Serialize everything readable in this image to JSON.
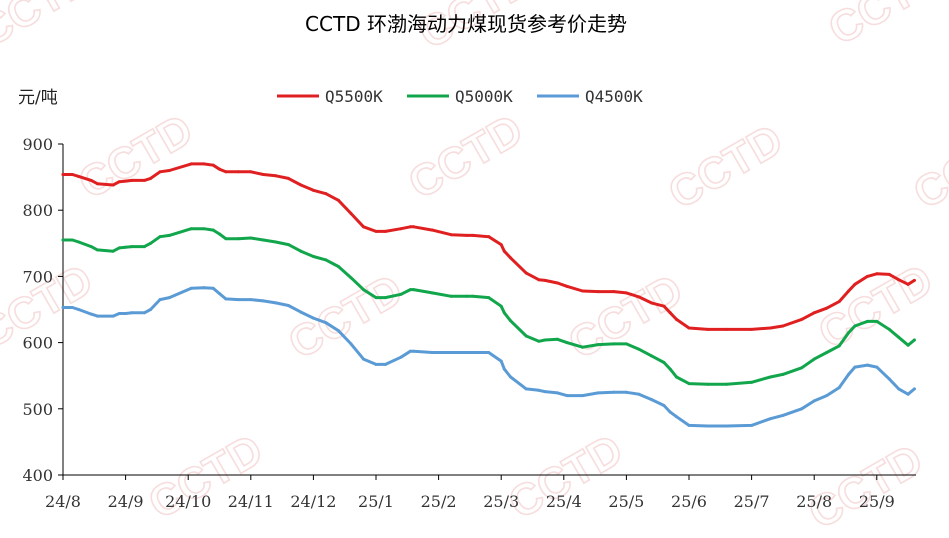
{
  "watermark": "CCTD",
  "chart_data": {
    "type": "line",
    "title": "CCTD 环渤海动力煤现货参考价走势",
    "ylabel": "元/吨",
    "xlabel": "",
    "ylim": [
      400,
      900
    ],
    "yticks": [
      400,
      500,
      600,
      700,
      800,
      900
    ],
    "xticks": [
      "24/8",
      "24/9",
      "24/10",
      "24/11",
      "24/12",
      "25/1",
      "25/2",
      "25/3",
      "25/4",
      "25/5",
      "25/6",
      "25/7",
      "25/8",
      "25/9"
    ],
    "grid": false,
    "legend_position": "top",
    "series": [
      {
        "name": "Q5500K",
        "color": "#e02020",
        "x": [
          0,
          0.15,
          0.25,
          0.45,
          0.55,
          0.8,
          0.9,
          1.0,
          1.1,
          1.3,
          1.4,
          1.55,
          1.7,
          2.05,
          2.25,
          2.4,
          2.5,
          2.6,
          2.8,
          3.0,
          3.2,
          3.4,
          3.6,
          3.8,
          4.0,
          4.2,
          4.4,
          4.6,
          4.8,
          5.0,
          5.15,
          5.4,
          5.55,
          5.6,
          5.9,
          6.2,
          6.45,
          6.55,
          6.8,
          7.0,
          7.05,
          7.15,
          7.4,
          7.6,
          7.7,
          7.9,
          8.05,
          8.3,
          8.55,
          8.8,
          9.0,
          9.2,
          9.4,
          9.6,
          9.7,
          9.8,
          10.0,
          10.3,
          10.6,
          11.0,
          11.3,
          11.5,
          11.8,
          12.0,
          12.2,
          12.4,
          12.55,
          12.65,
          12.85,
          13.0,
          13.2,
          13.35,
          13.5,
          13.6
        ],
        "values": [
          854,
          854,
          851,
          845,
          840,
          838,
          843,
          844,
          845,
          845,
          848,
          858,
          860,
          870,
          870,
          868,
          862,
          858,
          858,
          858,
          854,
          852,
          848,
          838,
          830,
          825,
          815,
          795,
          775,
          768,
          768,
          772,
          775,
          775,
          770,
          763,
          762,
          762,
          760,
          748,
          738,
          728,
          705,
          695,
          694,
          690,
          685,
          678,
          677,
          677,
          675,
          669,
          660,
          655,
          645,
          635,
          622,
          620,
          620,
          620,
          622,
          625,
          635,
          645,
          652,
          662,
          678,
          688,
          700,
          704,
          703,
          695,
          688,
          694
        ]
      },
      {
        "name": "Q5000K",
        "color": "#12a64c",
        "x": [
          0,
          0.15,
          0.25,
          0.45,
          0.55,
          0.8,
          0.9,
          1.0,
          1.1,
          1.3,
          1.4,
          1.55,
          1.7,
          2.05,
          2.25,
          2.4,
          2.5,
          2.6,
          2.8,
          3.0,
          3.2,
          3.4,
          3.6,
          3.8,
          4.0,
          4.2,
          4.4,
          4.6,
          4.8,
          5.0,
          5.15,
          5.4,
          5.55,
          5.6,
          5.9,
          6.2,
          6.45,
          6.55,
          6.8,
          7.0,
          7.05,
          7.15,
          7.4,
          7.6,
          7.7,
          7.9,
          8.05,
          8.3,
          8.55,
          8.8,
          9.0,
          9.2,
          9.4,
          9.6,
          9.7,
          9.8,
          10.0,
          10.3,
          10.6,
          11.0,
          11.3,
          11.5,
          11.8,
          12.0,
          12.2,
          12.4,
          12.55,
          12.65,
          12.85,
          13.0,
          13.2,
          13.35,
          13.5,
          13.6
        ],
        "values": [
          755,
          755,
          752,
          745,
          740,
          738,
          743,
          744,
          745,
          745,
          750,
          760,
          762,
          772,
          772,
          770,
          764,
          757,
          757,
          758,
          755,
          752,
          748,
          738,
          730,
          725,
          715,
          698,
          680,
          668,
          668,
          673,
          680,
          680,
          675,
          670,
          670,
          670,
          668,
          655,
          645,
          633,
          610,
          602,
          604,
          605,
          600,
          593,
          597,
          598,
          598,
          590,
          580,
          570,
          560,
          548,
          538,
          537,
          537,
          540,
          548,
          552,
          562,
          575,
          585,
          595,
          615,
          625,
          632,
          632,
          620,
          608,
          596,
          604
        ]
      },
      {
        "name": "Q4500K",
        "color": "#5b9bd5",
        "x": [
          0,
          0.15,
          0.25,
          0.45,
          0.55,
          0.8,
          0.9,
          1.0,
          1.1,
          1.3,
          1.4,
          1.55,
          1.7,
          2.05,
          2.25,
          2.4,
          2.5,
          2.6,
          2.8,
          3.0,
          3.2,
          3.4,
          3.6,
          3.8,
          4.0,
          4.2,
          4.4,
          4.6,
          4.8,
          5.0,
          5.15,
          5.4,
          5.55,
          5.6,
          5.9,
          6.2,
          6.45,
          6.55,
          6.8,
          7.0,
          7.05,
          7.15,
          7.4,
          7.6,
          7.7,
          7.9,
          8.05,
          8.3,
          8.55,
          8.8,
          9.0,
          9.2,
          9.4,
          9.6,
          9.7,
          9.8,
          10.0,
          10.3,
          10.6,
          11.0,
          11.3,
          11.5,
          11.8,
          12.0,
          12.2,
          12.4,
          12.55,
          12.65,
          12.85,
          13.0,
          13.2,
          13.35,
          13.5,
          13.6
        ],
        "values": [
          653,
          653,
          650,
          643,
          640,
          640,
          644,
          644,
          645,
          645,
          650,
          665,
          668,
          682,
          683,
          682,
          674,
          666,
          665,
          665,
          663,
          660,
          656,
          646,
          637,
          630,
          618,
          598,
          575,
          567,
          567,
          578,
          587,
          587,
          585,
          585,
          585,
          585,
          585,
          572,
          560,
          548,
          530,
          528,
          526,
          524,
          520,
          520,
          524,
          525,
          525,
          522,
          514,
          505,
          495,
          488,
          475,
          474,
          474,
          475,
          485,
          490,
          500,
          512,
          520,
          532,
          552,
          563,
          566,
          563,
          545,
          530,
          522,
          530
        ]
      }
    ]
  }
}
